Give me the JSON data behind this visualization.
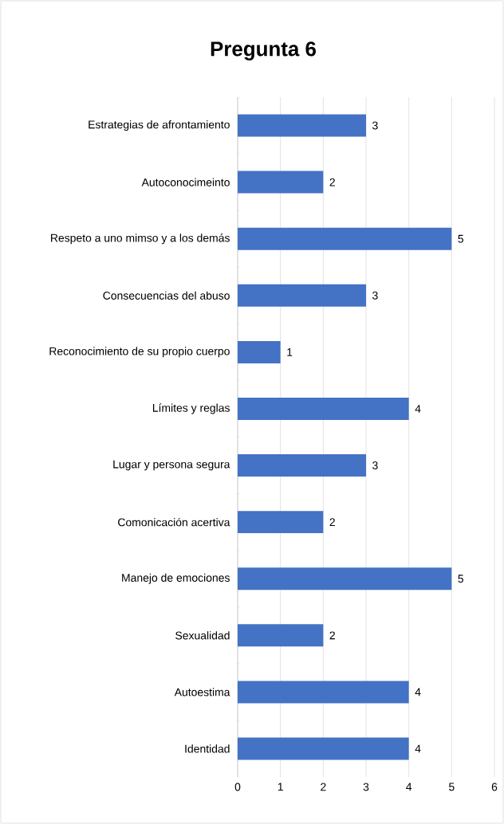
{
  "chart_data": {
    "type": "bar",
    "orientation": "horizontal",
    "title": "Pregunta 6",
    "categories": [
      "Estrategias de afrontamiento",
      "Autoconocimeinto",
      "Respeto a uno mimso y a los demás",
      "Consecuencias del abuso",
      "Reconocimiento de su propio cuerpo",
      "Límites y reglas",
      "Lugar y persona segura",
      "Comonicación acertiva",
      "Manejo de emociones",
      "Sexualidad",
      "Autoestima",
      "Identidad"
    ],
    "values": [
      3,
      2,
      5,
      3,
      1,
      4,
      3,
      2,
      5,
      2,
      4,
      4
    ],
    "color": "#4472c4",
    "xlim": [
      0,
      6
    ],
    "xticks": [
      0,
      1,
      2,
      3,
      4,
      5,
      6
    ],
    "grid": "x",
    "data_labels": true
  }
}
